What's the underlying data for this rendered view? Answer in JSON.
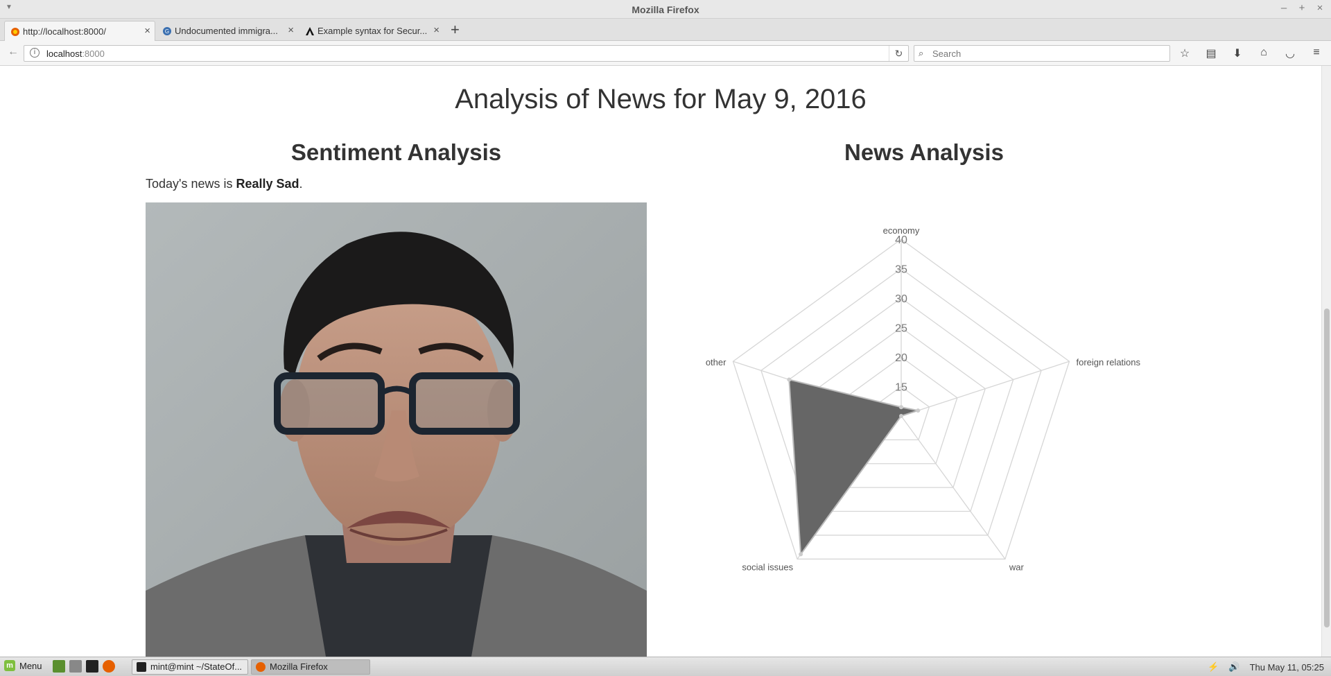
{
  "window": {
    "title": "Mozilla Firefox",
    "controls": [
      "–",
      "+",
      "×"
    ]
  },
  "tabs": [
    {
      "label": "http://localhost:8000/",
      "favicon": "firefox-icon"
    },
    {
      "label": "Undocumented immigra...",
      "favicon": "news-site-icon"
    },
    {
      "label": "Example syntax for Secur...",
      "favicon": "a-logo-icon"
    }
  ],
  "nav": {
    "url_host": "localhost",
    "url_port": ":8000",
    "search_placeholder": "Search"
  },
  "page": {
    "title": "Analysis of News for May 9, 2016",
    "sentiment_heading": "Sentiment Analysis",
    "news_heading": "News Analysis",
    "sentiment_prefix": "Today's news is ",
    "sentiment_value": "Really Sad",
    "sentiment_suffix": "."
  },
  "chart_data": {
    "type": "radar",
    "axes": [
      "economy",
      "foreign relations",
      "war",
      "social issues",
      "other"
    ],
    "ticks": [
      15,
      20,
      25,
      30,
      35,
      40
    ],
    "range": [
      10,
      40
    ],
    "series": [
      {
        "values": [
          11.5,
          13,
          10,
          39,
          30
        ],
        "color": "#666666"
      }
    ],
    "grid_color": "#d6d6d6"
  },
  "taskbar": {
    "menu_label": "Menu",
    "windows": [
      {
        "label": "mint@mint ~/StateOf..."
      },
      {
        "label": "Mozilla Firefox"
      }
    ],
    "clock": "Thu May 11, 05:25"
  }
}
